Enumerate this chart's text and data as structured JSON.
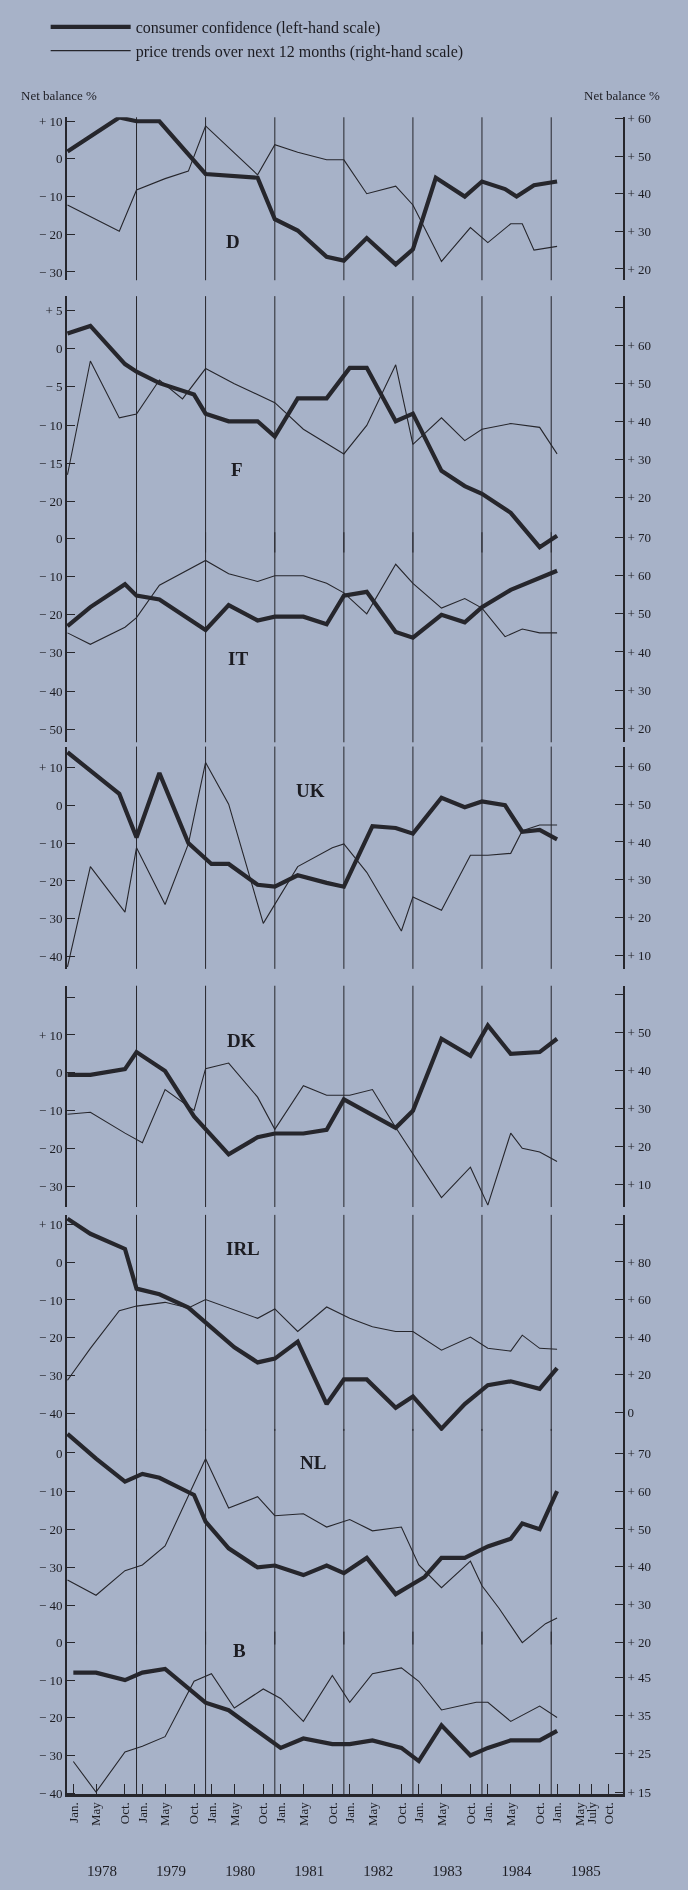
{
  "chart_data": [
    {
      "type": "line",
      "title": "D",
      "ylabel": "Net balance %",
      "y2label": "Net balance %",
      "legend": "top left",
      "tick_labels": "y",
      "xlim": [
        "1977-11-28",
        "1985-12-16"
      ],
      "ylim": [
        -32.2,
        11.05
      ],
      "y2lim": [
        17.0,
        60.3
      ],
      "yticks": [
        {
          "value": 10,
          "label": "+ 10"
        },
        0,
        {
          "value": -10,
          "label": "− 10"
        },
        {
          "value": -20,
          "label": "− 20"
        },
        {
          "value": -30,
          "label": "− 30"
        }
      ],
      "y2ticks": [
        {
          "value": 60,
          "label": "+ 60"
        },
        {
          "value": 50,
          "label": "+ 50"
        },
        {
          "value": 40,
          "label": "+ 40"
        },
        {
          "value": 30,
          "label": "+ 30"
        },
        {
          "value": 20,
          "label": "+ 20"
        }
      ],
      "ref_lines": [
        {
          "axis": "x",
          "value": "1978-12"
        },
        {
          "axis": "x",
          "value": "1979-12"
        },
        {
          "axis": "x",
          "value": "1980-12"
        },
        {
          "axis": "x",
          "value": "1981-12"
        },
        {
          "axis": "x",
          "value": "1982-12"
        },
        {
          "axis": "x",
          "value": "1983-12"
        },
        {
          "axis": "x",
          "value": "1984-12"
        }
      ],
      "series": [
        {
          "name": "consumer confidence (left-hand scale)",
          "color": "#26262c",
          "x": [
            "1977-12",
            "1978-09",
            "1978-12",
            "1979-04",
            "1979-12",
            "1980-09",
            "1980-12",
            "1981-04",
            "1981-09",
            "1981-12",
            "1982-04",
            "1982-09",
            "1982-12",
            "1983-04",
            "1983-09",
            "1983-12",
            "1984-04",
            "1984-06",
            "1984-09",
            "1985-01"
          ],
          "values": [
            2,
            11,
            10,
            10,
            -4,
            -5,
            -16,
            -19,
            -26,
            -27,
            -21,
            -28,
            -24,
            -5,
            -10,
            -6,
            -8,
            -10,
            -7,
            -6
          ]
        },
        {
          "name": "price trends over next 12 months (right-hand scale)",
          "color": "#26262c",
          "axis": "y2",
          "x": [
            "1977-12",
            "1978-09",
            "1978-12",
            "1979-05",
            "1979-09",
            "1979-12",
            "1980-09",
            "1980-12",
            "1981-04",
            "1981-09",
            "1981-12",
            "1982-04",
            "1982-09",
            "1982-12",
            "1983-05",
            "1983-10",
            "1984-01",
            "1984-05",
            "1984-07",
            "1984-09",
            "1985-01"
          ],
          "values": [
            37,
            30,
            41,
            44,
            46,
            58,
            45,
            53,
            51,
            49,
            49,
            40,
            42,
            37,
            22,
            31,
            27,
            32,
            32,
            25,
            26
          ]
        }
      ]
    },
    {
      "type": "line",
      "title": "F",
      "tick_labels": "y",
      "xlim": [
        "1977-11-28",
        "1985-12-16"
      ],
      "ylim": [
        -26.7,
        6.9
      ],
      "y2lim": [
        5.5,
        73.1
      ],
      "yticks": [
        {
          "value": 5,
          "label": "+ 5"
        },
        0,
        {
          "value": -5,
          "label": "− 5"
        },
        {
          "value": -10,
          "label": "− 10"
        },
        {
          "value": -15,
          "label": "− 15"
        },
        {
          "value": -20,
          "label": "− 20"
        }
      ],
      "y2ticks": [
        {
          "value": 70,
          "label": null
        },
        {
          "value": 60,
          "label": "+ 60"
        },
        {
          "value": 50,
          "label": "+ 50"
        },
        {
          "value": 40,
          "label": "+ 40"
        },
        {
          "value": 30,
          "label": "+ 30"
        },
        {
          "value": 20,
          "label": "+ 20"
        }
      ],
      "ref_lines": [
        {
          "axis": "x",
          "value": "1978-12"
        },
        {
          "axis": "x",
          "value": "1979-12"
        },
        {
          "axis": "x",
          "value": "1980-12"
        },
        {
          "axis": "x",
          "value": "1981-12"
        },
        {
          "axis": "x",
          "value": "1982-12"
        },
        {
          "axis": "x",
          "value": "1983-12"
        },
        {
          "axis": "x",
          "value": "1984-12"
        }
      ],
      "series": [
        {
          "color": "#26262c",
          "x": [
            "1977-12",
            "1978-04",
            "1978-10",
            "1978-12",
            "1979-04",
            "1979-10",
            "1979-12",
            "1980-04",
            "1980-09",
            "1980-12",
            "1981-04",
            "1981-09",
            "1982-01",
            "1982-04",
            "1982-09",
            "1982-12",
            "1983-05",
            "1983-09",
            "1983-12",
            "1984-05",
            "1984-10",
            "1985-01"
          ],
          "values": [
            2,
            3,
            -2,
            -3,
            -4.5,
            -6,
            -8.5,
            -9.5,
            -9.5,
            -11.5,
            -6.5,
            -6.5,
            -2.5,
            -2.5,
            -9.5,
            -8.5,
            -16,
            -18,
            -19,
            -21.5,
            -26,
            -24.5
          ]
        },
        {
          "color": "#26262c",
          "axis": "y2",
          "x": [
            "1977-12",
            "1978-04",
            "1978-09",
            "1978-12",
            "1979-04",
            "1979-08",
            "1979-12",
            "1980-05",
            "1980-12",
            "1981-05",
            "1981-12",
            "1982-04",
            "1982-09",
            "1982-12",
            "1983-05",
            "1983-09",
            "1983-12",
            "1984-05",
            "1984-10",
            "1985-01"
          ],
          "values": [
            26,
            56,
            41,
            42,
            51,
            46,
            54,
            50,
            45,
            38,
            31.5,
            39,
            55,
            34,
            41,
            35,
            38,
            39.5,
            38.5,
            31.5
          ]
        }
      ]
    },
    {
      "type": "line",
      "title": "IT",
      "tick_labels": "y",
      "xlim": [
        "1977-11-28",
        "1985-12-16"
      ],
      "ylim": [
        -53.4,
        1.6
      ],
      "y2lim": [
        16.3,
        71.4
      ],
      "yticks": [
        0,
        {
          "value": -10,
          "label": "− 10"
        },
        {
          "value": -20,
          "label": "− 20"
        },
        {
          "value": -30,
          "label": "− 30"
        },
        {
          "value": -40,
          "label": "− 40"
        },
        {
          "value": -50,
          "label": "− 50"
        }
      ],
      "y2ticks": [
        {
          "value": 70,
          "label": "+ 70"
        },
        {
          "value": 60,
          "label": "+ 60"
        },
        {
          "value": 50,
          "label": "+ 50"
        },
        {
          "value": 40,
          "label": "+ 40"
        },
        {
          "value": 30,
          "label": "+ 30"
        },
        {
          "value": 20,
          "label": "+ 20"
        }
      ],
      "ref_lines": [
        {
          "axis": "x",
          "value": "1978-12"
        },
        {
          "axis": "x",
          "value": "1979-12"
        },
        {
          "axis": "x",
          "value": "1980-12"
        },
        {
          "axis": "x",
          "value": "1981-12"
        },
        {
          "axis": "x",
          "value": "1982-12"
        },
        {
          "axis": "x",
          "value": "1983-12"
        },
        {
          "axis": "x",
          "value": "1984-12"
        }
      ],
      "series": [
        {
          "color": "#26262c",
          "x": [
            "1977-12",
            "1978-04",
            "1978-10",
            "1978-12",
            "1979-04",
            "1979-12",
            "1980-04",
            "1980-09",
            "1980-12",
            "1981-05",
            "1981-09",
            "1981-12",
            "1982-04",
            "1982-09",
            "1982-12",
            "1983-05",
            "1983-09",
            "1983-12",
            "1984-05",
            "1985-01"
          ],
          "values": [
            -23,
            -18,
            -12,
            -15,
            -16,
            -24,
            -17.5,
            -21.5,
            -20.5,
            -20.5,
            -22.5,
            -15,
            -14,
            -24.5,
            -26,
            -20,
            -22,
            -18,
            -13.5,
            -8.5
          ]
        },
        {
          "color": "#26262c",
          "axis": "y2",
          "x": [
            "1977-12",
            "1978-04",
            "1978-10",
            "1978-12",
            "1979-04",
            "1979-12",
            "1980-04",
            "1980-09",
            "1980-12",
            "1981-05",
            "1981-09",
            "1981-12",
            "1982-04",
            "1982-09",
            "1982-12",
            "1983-05",
            "1983-09",
            "1983-12",
            "1984-04",
            "1984-07",
            "1984-10",
            "1985-01"
          ],
          "values": [
            45,
            42,
            46.5,
            49,
            57.5,
            64,
            60.5,
            58.5,
            60,
            60,
            58,
            55.5,
            50,
            63,
            58,
            51.5,
            54,
            51.5,
            44,
            46,
            45,
            45
          ]
        }
      ]
    },
    {
      "type": "line",
      "title": "UK",
      "tick_labels": "y",
      "xlim": [
        "1977-11-28",
        "1985-12-16"
      ],
      "ylim": [
        -43.2,
        15.5
      ],
      "y2lim": [
        6.5,
        65.2
      ],
      "yticks": [
        {
          "value": 10,
          "label": "+ 10"
        },
        0,
        {
          "value": -10,
          "label": "− 10"
        },
        {
          "value": -20,
          "label": "− 20"
        },
        {
          "value": -30,
          "label": "− 30"
        },
        {
          "value": -40,
          "label": "− 40"
        }
      ],
      "y2ticks": [
        {
          "value": 60,
          "label": "+ 60"
        },
        {
          "value": 50,
          "label": "+ 50"
        },
        {
          "value": 40,
          "label": "+ 40"
        },
        {
          "value": 30,
          "label": "+ 30"
        },
        {
          "value": 20,
          "label": "+ 20"
        },
        {
          "value": 10,
          "label": "+ 10"
        }
      ],
      "ref_lines": [
        {
          "axis": "x",
          "value": "1978-12"
        },
        {
          "axis": "x",
          "value": "1979-12"
        },
        {
          "axis": "x",
          "value": "1980-12"
        },
        {
          "axis": "x",
          "value": "1981-12"
        },
        {
          "axis": "x",
          "value": "1982-12"
        },
        {
          "axis": "x",
          "value": "1983-12"
        },
        {
          "axis": "x",
          "value": "1984-12"
        }
      ],
      "series": [
        {
          "color": "#26262c",
          "x": [
            "1977-12",
            "1978-09",
            "1978-12",
            "1979-04",
            "1979-09",
            "1980-01",
            "1980-04",
            "1980-09",
            "1980-12",
            "1981-04",
            "1981-09",
            "1981-12",
            "1982-05",
            "1982-09",
            "1982-12",
            "1983-05",
            "1983-09",
            "1983-12",
            "1984-04",
            "1984-07",
            "1984-10",
            "1985-01"
          ],
          "values": [
            14,
            3,
            -8.5,
            8.5,
            -10,
            -15.5,
            -15.5,
            -21,
            -21.5,
            -18.5,
            -20.5,
            -21.5,
            -5.5,
            -6,
            -7.5,
            2,
            -0.5,
            1,
            0,
            -7,
            -6.5,
            -9
          ]
        },
        {
          "color": "#26262c",
          "axis": "y2",
          "x": [
            "1977-12",
            "1978-04",
            "1978-10",
            "1978-12",
            "1979-05",
            "1979-09",
            "1979-12",
            "1980-04",
            "1980-10",
            "1981-04",
            "1981-10",
            "1981-12",
            "1982-04",
            "1982-10",
            "1982-12",
            "1983-05",
            "1983-10",
            "1984-01",
            "1984-05",
            "1984-07",
            "1984-10",
            "1985-01"
          ],
          "values": [
            7,
            33.5,
            21.5,
            38.5,
            23.5,
            39.5,
            61,
            50,
            18.5,
            33.5,
            38.5,
            39.5,
            32,
            16.5,
            25.5,
            22,
            36.5,
            36.5,
            37,
            43,
            44.5,
            44.5
          ]
        }
      ]
    },
    {
      "type": "line",
      "title": "DK",
      "tick_labels": "y",
      "xlim": [
        "1977-11-28",
        "1985-12-16"
      ],
      "ylim": [
        -35.4,
        23
      ],
      "y2lim": [
        4.0,
        62.4
      ],
      "yticks": [
        {
          "value": 20,
          "label": null
        },
        {
          "value": 10,
          "label": "+ 10"
        },
        0,
        {
          "value": -10,
          "label": "− 10"
        },
        {
          "value": -20,
          "label": "− 20"
        },
        {
          "value": -30,
          "label": "− 30"
        }
      ],
      "y2ticks": [
        {
          "value": 60,
          "label": null
        },
        {
          "value": 50,
          "label": "+ 50"
        },
        {
          "value": 40,
          "label": "+ 40"
        },
        {
          "value": 30,
          "label": "+ 30"
        },
        {
          "value": 20,
          "label": "+ 20"
        },
        {
          "value": 10,
          "label": "+ 10"
        }
      ],
      "ref_lines": [
        {
          "axis": "x",
          "value": "1978-12"
        },
        {
          "axis": "x",
          "value": "1979-12"
        },
        {
          "axis": "x",
          "value": "1980-12"
        },
        {
          "axis": "x",
          "value": "1981-12"
        },
        {
          "axis": "x",
          "value": "1982-12"
        },
        {
          "axis": "x",
          "value": "1983-12"
        },
        {
          "axis": "x",
          "value": "1984-12"
        }
      ],
      "series": [
        {
          "color": "#26262c",
          "x": [
            "1977-12",
            "1978-04",
            "1978-10",
            "1978-12",
            "1979-05",
            "1979-10",
            "1980-04",
            "1980-09",
            "1980-12",
            "1981-05",
            "1981-09",
            "1981-12",
            "1982-09",
            "1982-12",
            "1983-05",
            "1983-10",
            "1984-01",
            "1984-05",
            "1984-10",
            "1985-01"
          ],
          "values": [
            -0.5,
            -0.5,
            1,
            5.5,
            0.5,
            -11.5,
            -21.5,
            -17,
            -16,
            -16,
            -15,
            -7,
            -14.5,
            -10,
            9,
            4.5,
            12.5,
            5,
            5.5,
            9
          ]
        },
        {
          "color": "#26262c",
          "axis": "y2",
          "x": [
            "1977-12",
            "1978-04",
            "1978-10",
            "1979-01",
            "1979-05",
            "1979-10",
            "1979-12",
            "1980-04",
            "1980-09",
            "1980-12",
            "1981-05",
            "1981-09",
            "1982-01",
            "1982-05",
            "1982-09",
            "1983-05",
            "1983-10",
            "1984-01",
            "1984-05",
            "1984-07",
            "1984-10",
            "1985-01"
          ],
          "values": [
            28.5,
            29,
            23.5,
            21,
            35,
            29.5,
            40.5,
            42,
            33,
            24.5,
            36,
            33.5,
            33.5,
            35,
            25,
            6.5,
            14.5,
            4.5,
            23.5,
            19.5,
            18.5,
            16
          ]
        }
      ]
    },
    {
      "type": "line",
      "title": "IRL",
      "tick_labels": "y",
      "xlim": [
        "1977-11-28",
        "1985-12-16"
      ],
      "ylim": [
        -44.6,
        12.5
      ],
      "y2lim": [
        -10,
        105.1
      ],
      "yticks": [
        {
          "value": 10,
          "label": "+ 10"
        },
        0,
        {
          "value": -10,
          "label": "− 10"
        },
        {
          "value": -20,
          "label": "− 20"
        },
        {
          "value": -30,
          "label": "− 30"
        },
        {
          "value": -40,
          "label": "− 40"
        }
      ],
      "y2ticks": [
        {
          "value": 100,
          "label": null
        },
        {
          "value": 80,
          "label": "+ 80"
        },
        {
          "value": 60,
          "label": "+ 60"
        },
        {
          "value": 40,
          "label": "+ 40"
        },
        {
          "value": 20,
          "label": "+ 20"
        },
        0
      ],
      "ref_lines": [
        {
          "axis": "x",
          "value": "1978-12"
        },
        {
          "axis": "x",
          "value": "1979-12"
        },
        {
          "axis": "x",
          "value": "1980-12"
        },
        {
          "axis": "x",
          "value": "1981-12"
        },
        {
          "axis": "x",
          "value": "1982-12"
        },
        {
          "axis": "x",
          "value": "1983-12"
        },
        {
          "axis": "x",
          "value": "1984-12"
        }
      ],
      "series": [
        {
          "color": "#26262c",
          "x": [
            "1977-12",
            "1978-04",
            "1978-10",
            "1978-12",
            "1979-04",
            "1979-09",
            "1980-05",
            "1980-09",
            "1980-12",
            "1981-04",
            "1981-09",
            "1981-12",
            "1982-04",
            "1982-09",
            "1982-12",
            "1983-05",
            "1983-09",
            "1984-01",
            "1984-05",
            "1984-10",
            "1985-01"
          ],
          "values": [
            11.5,
            7.5,
            3.5,
            -7,
            -8.5,
            -12,
            -22.5,
            -26.5,
            -25.5,
            -21,
            -37.5,
            -31,
            -31,
            -38.5,
            -35.5,
            -44,
            -37.5,
            -32.5,
            -31.5,
            -33.5,
            -28
          ]
        },
        {
          "color": "#26262c",
          "axis": "y2",
          "x": [
            "1977-12",
            "1978-04",
            "1978-09",
            "1978-12",
            "1979-05",
            "1979-09",
            "1979-12",
            "1980-09",
            "1980-12",
            "1981-04",
            "1981-09",
            "1982-01",
            "1982-05",
            "1982-09",
            "1982-12",
            "1983-05",
            "1983-10",
            "1984-01",
            "1984-05",
            "1984-07",
            "1984-10",
            "1985-01"
          ],
          "values": [
            17,
            34,
            54,
            56.5,
            58.5,
            55.5,
            60,
            50,
            55,
            43,
            56,
            50,
            45.5,
            43,
            43,
            33,
            40,
            34,
            32.5,
            41,
            34,
            33.5
          ]
        }
      ]
    },
    {
      "type": "line",
      "title": "NL",
      "tick_labels": "y",
      "xlim": [
        "1977-11-28",
        "1985-12-16"
      ],
      "ylim": [
        -50.2,
        6.3
      ],
      "y2lim": [
        19.5,
        76.4
      ],
      "yticks": [
        0,
        {
          "value": -10,
          "label": "− 10"
        },
        {
          "value": -20,
          "label": "− 20"
        },
        {
          "value": -30,
          "label": "− 30"
        },
        {
          "value": -40,
          "label": "− 40"
        }
      ],
      "y2ticks": [
        {
          "value": 70,
          "label": "+ 70"
        },
        {
          "value": 60,
          "label": "+ 60"
        },
        {
          "value": 50,
          "label": "+ 50"
        },
        {
          "value": 40,
          "label": "+ 40"
        },
        {
          "value": 30,
          "label": "+ 30"
        },
        {
          "value": 20,
          "label": "+ 20"
        }
      ],
      "ref_lines": [
        {
          "axis": "x",
          "value": "1978-12"
        },
        {
          "axis": "x",
          "value": "1979-12"
        },
        {
          "axis": "x",
          "value": "1980-12"
        },
        {
          "axis": "x",
          "value": "1981-12"
        },
        {
          "axis": "x",
          "value": "1982-12"
        },
        {
          "axis": "x",
          "value": "1983-12"
        },
        {
          "axis": "x",
          "value": "1984-12"
        }
      ],
      "series": [
        {
          "color": "#26262c",
          "x": [
            "1977-12",
            "1978-05",
            "1978-10",
            "1979-01",
            "1979-04",
            "1979-10",
            "1979-12",
            "1980-04",
            "1980-09",
            "1980-12",
            "1981-05",
            "1981-09",
            "1981-12",
            "1982-04",
            "1982-09",
            "1983-02",
            "1983-05",
            "1983-09",
            "1984-01",
            "1984-05",
            "1984-07",
            "1984-10",
            "1985-01"
          ],
          "values": [
            5,
            -1.5,
            -7.5,
            -5.5,
            -6.5,
            -11,
            -18,
            -25,
            -30,
            -29.5,
            -32,
            -29.5,
            -31.5,
            -27.5,
            -37,
            -32.5,
            -27.5,
            -27.5,
            -24.5,
            -22.5,
            -18.5,
            -20,
            -10
          ]
        },
        {
          "color": "#26262c",
          "axis": "y2",
          "x": [
            "1977-12",
            "1978-05",
            "1978-10",
            "1979-01",
            "1979-05",
            "1979-12",
            "1980-04",
            "1980-09",
            "1980-12",
            "1981-05",
            "1981-09",
            "1982-01",
            "1982-05",
            "1982-10",
            "1983-01",
            "1983-05",
            "1983-10",
            "1983-12",
            "1984-03",
            "1984-07",
            "1984-11",
            "1985-01"
          ],
          "values": [
            36.5,
            32.5,
            39,
            40.5,
            45.5,
            68.5,
            55.5,
            58.5,
            53.5,
            54,
            50.5,
            52.5,
            49.5,
            50.5,
            40.5,
            34.5,
            41.5,
            35,
            29,
            20,
            25,
            26.5
          ]
        }
      ]
    },
    {
      "type": "line",
      "title": "B",
      "xlim": [
        "1977-11-28",
        "1985-12-16"
      ],
      "ylim": [
        -40.3,
        2.9
      ],
      "y2lim": [
        14.45,
        57
      ],
      "xticks": [
        {
          "value": "1978-01",
          "label": "Jan."
        },
        {
          "value": "1978-05",
          "label": "May"
        },
        {
          "value": "1978-10",
          "label": "Oct."
        },
        {
          "value": "1979-01",
          "label": "Jan."
        },
        {
          "value": "1979-05",
          "label": "May"
        },
        {
          "value": "1979-10",
          "label": "Oct."
        },
        {
          "value": "1980-01",
          "label": "Jan."
        },
        {
          "value": "1980-05",
          "label": "May"
        },
        {
          "value": "1980-10",
          "label": "Oct."
        },
        {
          "value": "1981-01",
          "label": "Jan."
        },
        {
          "value": "1981-05",
          "label": "May"
        },
        {
          "value": "1981-10",
          "label": "Oct."
        },
        {
          "value": "1982-01",
          "label": "Jan."
        },
        {
          "value": "1982-05",
          "label": "May"
        },
        {
          "value": "1982-10",
          "label": "Oct."
        },
        {
          "value": "1983-01",
          "label": "Jan."
        },
        {
          "value": "1983-05",
          "label": "May"
        },
        {
          "value": "1983-10",
          "label": "Oct."
        },
        {
          "value": "1984-01",
          "label": "Jan."
        },
        {
          "value": "1984-05",
          "label": "May"
        },
        {
          "value": "1984-10",
          "label": "Oct."
        },
        {
          "value": "1985-01",
          "label": "Jan."
        },
        {
          "value": "1985-05",
          "label": "May"
        },
        {
          "value": "1985-07",
          "label": "July"
        },
        {
          "value": "1985-10",
          "label": "Oct."
        }
      ],
      "x2lim": [
        "1977-11-28",
        "1985-12-16"
      ],
      "x2ticks": [
        {
          "value": "1978-06",
          "label": "1978"
        },
        {
          "value": "1979-06",
          "label": "1979"
        },
        {
          "value": "1980-06",
          "label": "1980"
        },
        {
          "value": "1981-06",
          "label": "1981"
        },
        {
          "value": "1982-06",
          "label": "1982"
        },
        {
          "value": "1983-06",
          "label": "1983"
        },
        {
          "value": "1984-06",
          "label": "1984"
        },
        {
          "value": "1985-06",
          "label": "1985"
        }
      ],
      "yticks": [
        0,
        {
          "value": -10,
          "label": "− 10"
        },
        {
          "value": -20,
          "label": "− 20"
        },
        {
          "value": -30,
          "label": "− 30"
        },
        {
          "value": -40,
          "label": "− 40"
        }
      ],
      "y2ticks": [
        {
          "value": 45,
          "label": "+ 45"
        },
        {
          "value": 35,
          "label": "+ 35"
        },
        {
          "value": 25,
          "label": "+ 25"
        },
        {
          "value": 15,
          "label": "+ 15"
        }
      ],
      "ref_lines": [
        {
          "axis": "x",
          "value": "1978-12"
        },
        {
          "axis": "x",
          "value": "1979-12"
        },
        {
          "axis": "x",
          "value": "1980-12"
        },
        {
          "axis": "x",
          "value": "1981-12"
        },
        {
          "axis": "x",
          "value": "1982-12"
        },
        {
          "axis": "x",
          "value": "1983-12"
        },
        {
          "axis": "x",
          "value": "1984-12"
        }
      ],
      "series": [
        {
          "color": "#26262c",
          "x": [
            "1978-01",
            "1978-05",
            "1978-10",
            "1979-01",
            "1979-05",
            "1979-12",
            "1980-04",
            "1981-01",
            "1981-05",
            "1981-10",
            "1982-01",
            "1982-05",
            "1982-10",
            "1983-01",
            "1983-05",
            "1983-10",
            "1984-01",
            "1984-05",
            "1984-10",
            "1985-01"
          ],
          "values": [
            -8,
            -8,
            -10,
            -8,
            -7,
            -16,
            -18,
            -28,
            -25.5,
            -27,
            -27,
            -26,
            -28,
            -31.5,
            -22,
            -30,
            -28,
            -26,
            -26,
            -23.5
          ]
        },
        {
          "color": "#26262c",
          "axis": "y2",
          "x": [
            "1978-01",
            "1978-05",
            "1978-10",
            "1979-01",
            "1979-05",
            "1979-10",
            "1980-01",
            "1980-05",
            "1980-10",
            "1981-01",
            "1981-05",
            "1981-10",
            "1982-01",
            "1982-05",
            "1982-10",
            "1983-01",
            "1983-05",
            "1983-11",
            "1984-01",
            "1984-05",
            "1984-10",
            "1985-01"
          ],
          "values": [
            23,
            15,
            25.5,
            27,
            29.5,
            44,
            46,
            37,
            42,
            39.5,
            33.5,
            45.5,
            38.5,
            46,
            47.5,
            44,
            36.5,
            38.5,
            38.5,
            33.5,
            37.5,
            34.5
          ]
        }
      ]
    }
  ]
}
